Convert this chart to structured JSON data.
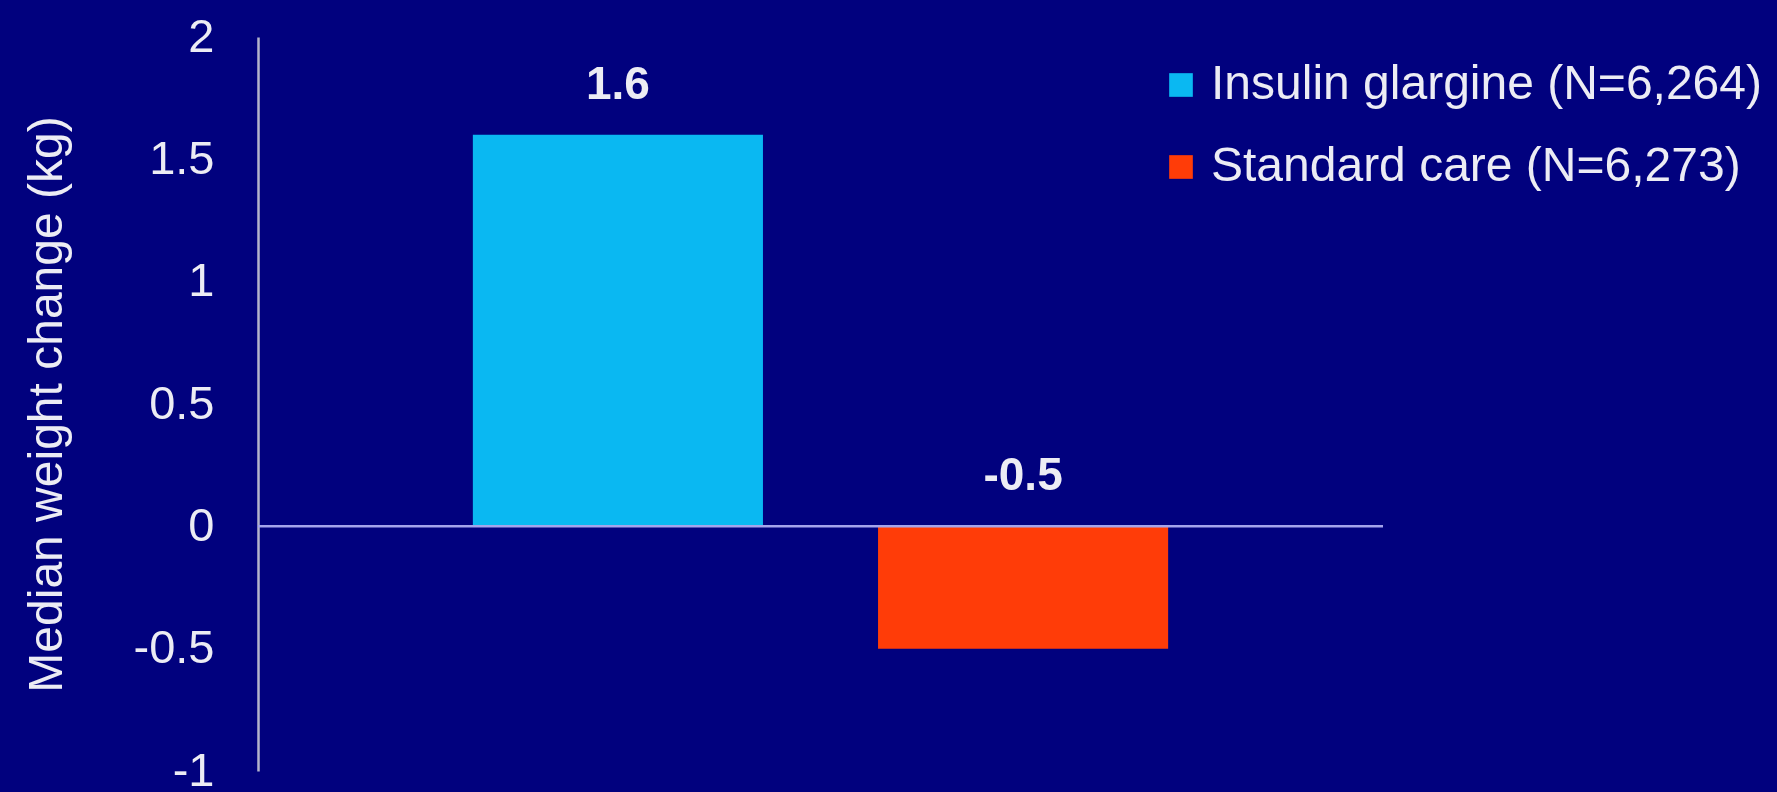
{
  "chart_data": {
    "type": "bar",
    "ylabel": "Median weight change (kg)",
    "categories": [
      null
    ],
    "series": [
      {
        "name": "Insulin glargine (N=6,264)",
        "color": "#0ab8f2",
        "values": [
          1.6
        ]
      },
      {
        "name": "Standard care (N=6,273)",
        "color": "#ff3c08",
        "values": [
          -0.5
        ]
      }
    ],
    "ylim": [
      -1,
      2
    ],
    "yticks": [
      -1,
      -0.5,
      0,
      0.5,
      1,
      1.5,
      2
    ],
    "ref_lines": [
      {
        "axis": "y",
        "value": 0,
        "color": "#a4a4ec"
      }
    ],
    "data_labels": true,
    "legend": "top right"
  }
}
